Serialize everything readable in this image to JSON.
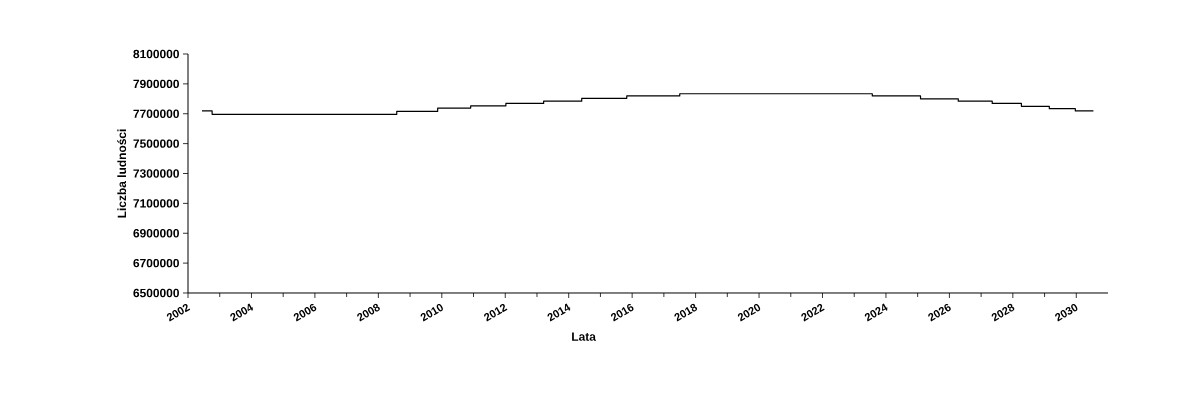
{
  "chart_data": {
    "type": "step",
    "xlabel": "Lata",
    "ylabel": "Liczba ludności",
    "x": [
      2002.44,
      2002.76,
      2008.58,
      2009.87,
      2010.91,
      2012.02,
      2013.21,
      2014.41,
      2015.83,
      2017.5,
      2023.57,
      2025.09,
      2026.28,
      2027.35,
      2028.27,
      2029.15,
      2029.97,
      2030.54
    ],
    "values": [
      7719000,
      7696000,
      7716000,
      7738000,
      7753000,
      7769000,
      7784000,
      7803000,
      7819000,
      7834000,
      7819000,
      7800000,
      7784000,
      7769000,
      7750000,
      7734000,
      7719000,
      7719000
    ],
    "color": "#000000",
    "xlim": [
      2002,
      2031
    ],
    "xticks": [
      2002,
      2004,
      2006,
      2008,
      2010,
      2012,
      2014,
      2016,
      2018,
      2020,
      2022,
      2024,
      2026,
      2028,
      2030
    ],
    "ylim": [
      6500000,
      8100000
    ],
    "yticks": [
      6500000,
      6700000,
      6900000,
      7100000,
      7300000,
      7500000,
      7700000,
      7900000,
      8100000
    ],
    "grid": false,
    "marker": "none",
    "line_style": "solid"
  }
}
